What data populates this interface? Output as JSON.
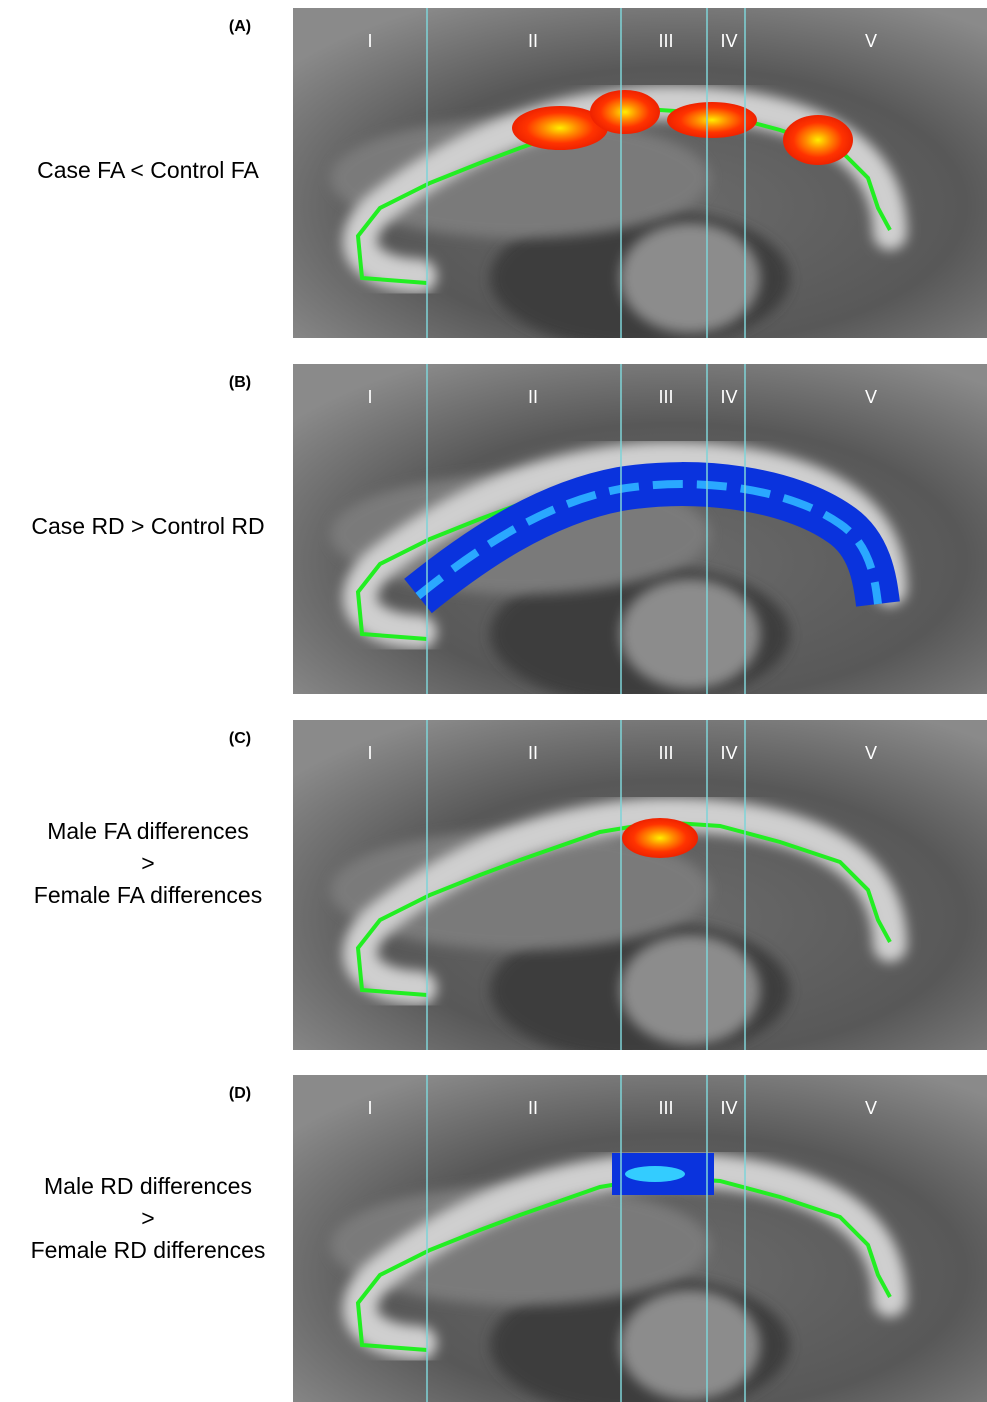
{
  "panels": [
    {
      "label": "(A)",
      "caption": [
        "Case FA < Control FA"
      ],
      "regions": [
        "I",
        "II",
        "III",
        "IV",
        "V"
      ]
    },
    {
      "label": "(B)",
      "caption": [
        "Case RD > Control RD"
      ],
      "regions": [
        "I",
        "II",
        "III",
        "IV",
        "V"
      ]
    },
    {
      "label": "(C)",
      "caption": [
        "Male FA differences",
        ">",
        "Female FA differences"
      ],
      "regions": [
        "I",
        "II",
        "III",
        "IV",
        "V"
      ]
    },
    {
      "label": "(D)",
      "caption": [
        "Male RD differences",
        ">",
        "Female RD differences"
      ],
      "regions": [
        "I",
        "II",
        "III",
        "IV",
        "V"
      ]
    }
  ]
}
